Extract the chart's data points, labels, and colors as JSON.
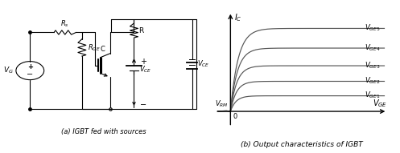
{
  "bg_color": "#ffffff",
  "fig_bg": "#ffffff",
  "caption_left": "(a) IGBT fed with sources",
  "caption_right": "(b) Output characteristics of IGBT",
  "curves": [
    {
      "I_sat": 1.2,
      "k": 3.5,
      "label": "V_{GE1}"
    },
    {
      "I_sat": 2.4,
      "k": 3.2,
      "label": "V_{GE2}"
    },
    {
      "I_sat": 3.8,
      "k": 2.9,
      "label": "V_{GE3}"
    },
    {
      "I_sat": 5.4,
      "k": 2.6,
      "label": "V_{GE4}"
    },
    {
      "I_sat": 7.2,
      "k": 2.3,
      "label": "V_{GE5}"
    }
  ],
  "curve_color": "#555555",
  "axis_color": "#000000",
  "text_color": "#000000"
}
